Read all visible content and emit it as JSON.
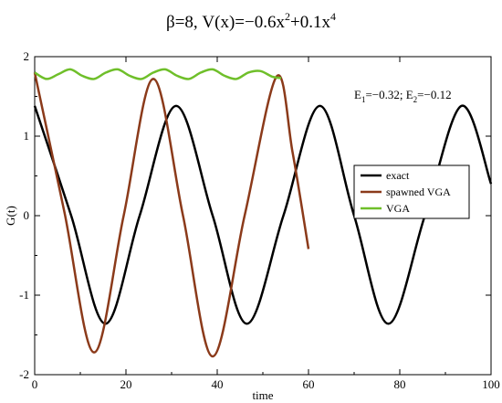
{
  "chart_data": {
    "type": "line",
    "title": {
      "beta": "β=8, V(x)=−0.6x",
      "exp1": "2",
      "mid": "+0.1x",
      "exp2": "4"
    },
    "xlabel": "time",
    "ylabel": "G(t)",
    "xlim": [
      0,
      100
    ],
    "ylim": [
      -2,
      2
    ],
    "x_ticks": [
      "0",
      "20",
      "40",
      "60",
      "80",
      "100"
    ],
    "y_ticks": [
      "-2",
      "-1",
      "0",
      "1",
      "2"
    ],
    "grid": false,
    "legend_position": "right",
    "annotation": {
      "e1_prefix": "E",
      "e1_sub": "1",
      "e1_value": "=−0.32; E",
      "e2_sub": "2",
      "e2_value": "=−0.12"
    },
    "series": [
      {
        "name": "exact",
        "color": "#000000",
        "x": [
          0,
          8,
          15.5,
          23,
          31,
          39,
          46.5,
          54.5,
          62.5,
          70,
          77.5,
          85.5,
          93.5,
          100
        ],
        "values": [
          1.38,
          0.0,
          -1.36,
          0.0,
          1.38,
          0.0,
          -1.36,
          0.0,
          1.38,
          0.0,
          -1.36,
          0.0,
          1.38,
          0.4
        ]
      },
      {
        "name": "spawned VGA",
        "color": "#8b3a1a",
        "x": [
          0,
          6.5,
          13,
          19.5,
          26,
          32.5,
          39,
          46,
          53,
          56.5,
          60
        ],
        "values": [
          1.8,
          0.05,
          -1.72,
          0.0,
          1.72,
          0.0,
          -1.77,
          0.0,
          1.75,
          0.8,
          -0.42
        ]
      },
      {
        "name": "VGA",
        "color": "#6fbf2a",
        "x": [
          0,
          2.6,
          5.2,
          7.8,
          10.4,
          13,
          15.6,
          18.2,
          20.8,
          23.4,
          26,
          28.6,
          31.2,
          33.8,
          36.4,
          39,
          41.6,
          44.2,
          46.8,
          49.4,
          52,
          54
        ],
        "values": [
          1.8,
          1.72,
          1.78,
          1.84,
          1.76,
          1.72,
          1.8,
          1.84,
          1.76,
          1.72,
          1.8,
          1.84,
          1.76,
          1.72,
          1.8,
          1.84,
          1.76,
          1.72,
          1.8,
          1.82,
          1.75,
          1.73
        ]
      }
    ]
  }
}
